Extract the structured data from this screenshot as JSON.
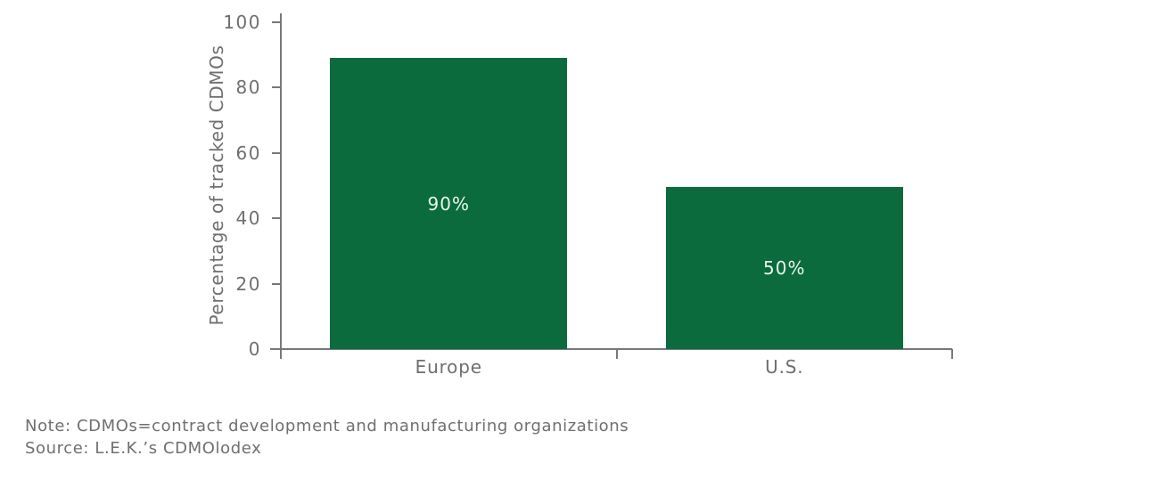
{
  "colors": {
    "bar": "#0B6B3C",
    "bar_label": "#E9F7EF",
    "axis": "#77787B",
    "text": "#6E6F71",
    "background": "#FFFFFF"
  },
  "chart_data": {
    "type": "bar",
    "categories": [
      "Europe",
      "U.S."
    ],
    "values": [
      90,
      50
    ],
    "drawn_values": [
      89,
      49.5
    ],
    "bar_labels": [
      "90%",
      "50%"
    ],
    "title": "",
    "xlabel": "",
    "ylabel": "Percentage of tracked CDMOs",
    "ylim": [
      0,
      100
    ],
    "yticks": [
      0,
      20,
      40,
      60,
      80,
      100
    ],
    "grid": false,
    "legend": false,
    "bar_color": "#0B6B3C",
    "label_position": "inside-center"
  },
  "footer": {
    "note": "Note: CDMOs=contract development and manufacturing organizations",
    "source": "Source: L.E.K.’s CDMOlodex"
  }
}
